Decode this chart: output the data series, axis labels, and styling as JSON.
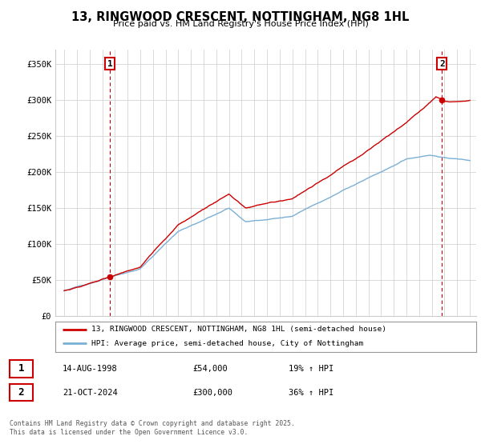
{
  "title": "13, RINGWOOD CRESCENT, NOTTINGHAM, NG8 1HL",
  "subtitle": "Price paid vs. HM Land Registry's House Price Index (HPI)",
  "legend_line1": "13, RINGWOOD CRESCENT, NOTTINGHAM, NG8 1HL (semi-detached house)",
  "legend_line2": "HPI: Average price, semi-detached house, City of Nottingham",
  "purchase1_date": "14-AUG-1998",
  "purchase1_price": "£54,000",
  "purchase1_hpi": "19% ↑ HPI",
  "purchase2_date": "21-OCT-2024",
  "purchase2_price": "£300,000",
  "purchase2_hpi": "36% ↑ HPI",
  "footer": "Contains HM Land Registry data © Crown copyright and database right 2025.\nThis data is licensed under the Open Government Licence v3.0.",
  "red_color": "#cc0000",
  "blue_color": "#7bafd4",
  "background_color": "#ffffff",
  "grid_color": "#cccccc",
  "annotation_box_color": "#cc0000",
  "purchase1_year": 1998.62,
  "purchase2_year": 2024.8,
  "purchase1_price_val": 54000,
  "purchase2_price_val": 300000,
  "ylim_max": 370000,
  "ylabel_ticks": [
    0,
    50000,
    100000,
    150000,
    200000,
    250000,
    300000,
    350000
  ]
}
